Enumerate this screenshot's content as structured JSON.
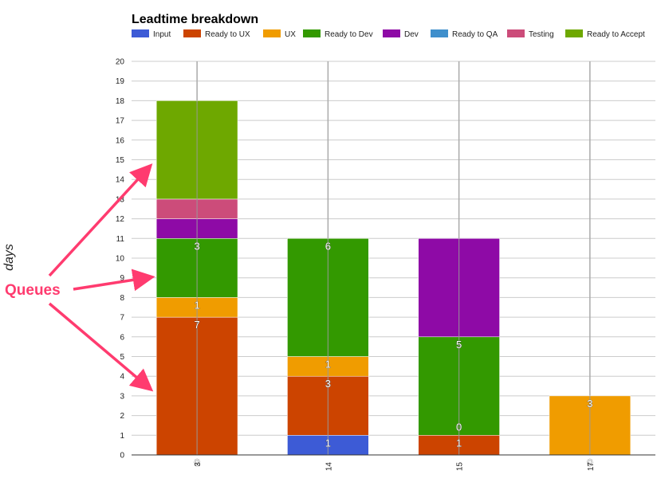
{
  "chart_data": {
    "type": "bar",
    "stacked": true,
    "title": "Leadtime breakdown",
    "ylabel": "days",
    "xlabel": "",
    "ylim": [
      0,
      20
    ],
    "yticks": [
      0,
      1,
      2,
      3,
      4,
      5,
      6,
      7,
      8,
      9,
      10,
      11,
      12,
      13,
      14,
      15,
      16,
      17,
      18,
      19,
      20
    ],
    "categories": [
      "3",
      "14",
      "15",
      "17"
    ],
    "grid": true,
    "legend_position": "top",
    "series": [
      {
        "name": "Input",
        "color": "#3d5bd6",
        "values": [
          0,
          1,
          0,
          0
        ]
      },
      {
        "name": "Ready to UX",
        "color": "#cc4400",
        "values": [
          7,
          3,
          1,
          0
        ]
      },
      {
        "name": "UX",
        "color": "#f09c00",
        "values": [
          1,
          1,
          0,
          3
        ]
      },
      {
        "name": "Ready to Dev",
        "color": "#339900",
        "values": [
          3,
          6,
          5,
          0
        ]
      },
      {
        "name": "Dev",
        "color": "#8e0aa6",
        "values": [
          1,
          0,
          5,
          0
        ]
      },
      {
        "name": "Ready to QA",
        "color": "#3f8fcc",
        "values": [
          0,
          0,
          0,
          0
        ]
      },
      {
        "name": "Testing",
        "color": "#cc4c7a",
        "values": [
          1,
          0,
          0,
          0
        ]
      },
      {
        "name": "Ready to Accept",
        "color": "#6ea800",
        "values": [
          5,
          0,
          0,
          0
        ]
      }
    ],
    "data_labels": [
      {
        "category": "3",
        "y": 0,
        "text": "0"
      },
      {
        "category": "3",
        "y": 7,
        "text": "7"
      },
      {
        "category": "3",
        "y": 8,
        "text": "1"
      },
      {
        "category": "3",
        "y": 11,
        "text": "3"
      },
      {
        "category": "14",
        "y": 1,
        "text": "1"
      },
      {
        "category": "14",
        "y": 4,
        "text": "3"
      },
      {
        "category": "14",
        "y": 5,
        "text": "1"
      },
      {
        "category": "14",
        "y": 11,
        "text": "6"
      },
      {
        "category": "15",
        "y": 1,
        "text": "1"
      },
      {
        "category": "15",
        "y": 1.8,
        "text": "0"
      },
      {
        "category": "15",
        "y": 6,
        "text": "5"
      },
      {
        "category": "17",
        "y": 0,
        "text": "0"
      },
      {
        "category": "17",
        "y": 3,
        "text": "3"
      }
    ],
    "annotation": {
      "text": "Queues",
      "color": "#ff3b6f",
      "arrow_targets": [
        {
          "category": "3",
          "y": 14.5
        },
        {
          "category": "3",
          "y": 9
        },
        {
          "category": "3",
          "y": 3.5
        }
      ]
    }
  }
}
